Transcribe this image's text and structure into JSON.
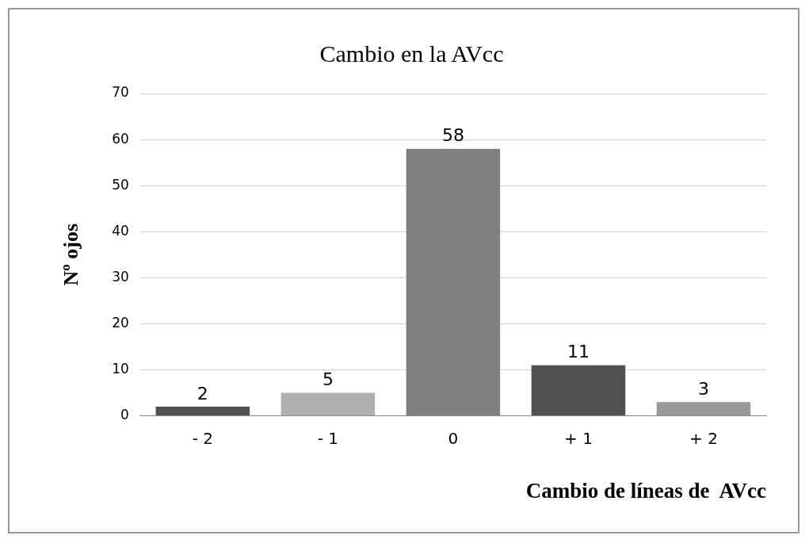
{
  "chart_data": {
    "type": "bar",
    "title": "Cambio en la AVcc",
    "xlabel": "Cambio de líneas de  AVcc",
    "ylabel": "Nº ojos",
    "categories": [
      "- 2",
      "- 1",
      "0",
      "+ 1",
      "+ 2"
    ],
    "values": [
      2,
      5,
      58,
      11,
      3
    ],
    "colors": [
      "#505050",
      "#b0b0b0",
      "#808080",
      "#505050",
      "#999999"
    ],
    "ylim": [
      0,
      70
    ],
    "yticks": [
      0,
      10,
      20,
      30,
      40,
      50,
      60,
      70
    ],
    "grid": "y",
    "data_labels": true,
    "legend": false
  }
}
